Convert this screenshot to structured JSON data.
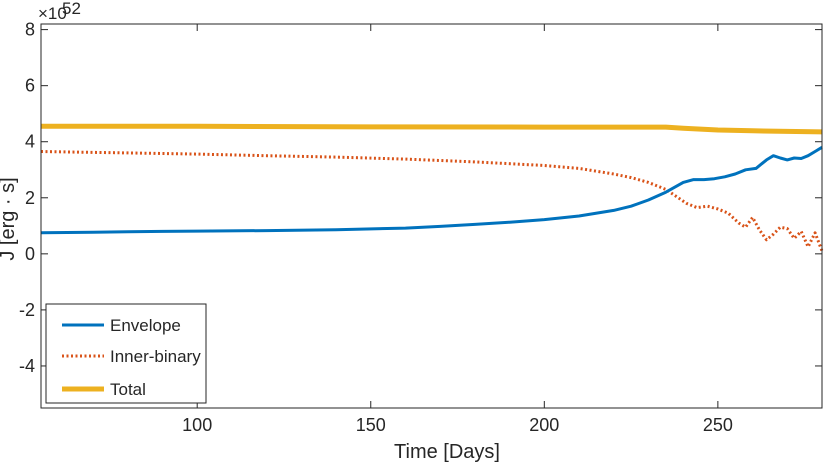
{
  "chart_data": {
    "type": "line",
    "title": "",
    "xlabel": "Time [Days]",
    "ylabel": "J [erg · s]",
    "y_exponent": {
      "base": "×10",
      "power": "52"
    },
    "xlim": [
      55,
      280
    ],
    "ylim": [
      -5.5,
      8.2
    ],
    "xticks": [
      100,
      150,
      200,
      250
    ],
    "yticks": [
      -4,
      -2,
      0,
      2,
      4,
      6,
      8
    ],
    "grid": false,
    "legend_position": "bottom-left",
    "series": [
      {
        "name": "Envelope",
        "color": "#0072BD",
        "style": "solid",
        "x": [
          55,
          70,
          80,
          90,
          100,
          120,
          140,
          160,
          170,
          180,
          190,
          200,
          210,
          220,
          225,
          230,
          235,
          240,
          243,
          246,
          249,
          252,
          255,
          258,
          261,
          264,
          266,
          268,
          270,
          272,
          274,
          276,
          278,
          280
        ],
        "y": [
          0.75,
          0.77,
          0.79,
          0.8,
          0.81,
          0.83,
          0.86,
          0.92,
          0.98,
          1.05,
          1.13,
          1.22,
          1.35,
          1.55,
          1.7,
          1.92,
          2.2,
          2.55,
          2.65,
          2.65,
          2.68,
          2.75,
          2.85,
          3.0,
          3.05,
          3.35,
          3.5,
          3.42,
          3.35,
          3.42,
          3.4,
          3.5,
          3.65,
          3.8
        ]
      },
      {
        "name": "Inner-binary",
        "color": "#D95319",
        "style": "dotted",
        "x": [
          55,
          70,
          80,
          90,
          100,
          120,
          140,
          160,
          180,
          200,
          210,
          220,
          225,
          230,
          235,
          238,
          241,
          244,
          247,
          250,
          253,
          256,
          258,
          260,
          262,
          264,
          266,
          268,
          270,
          272,
          274,
          276,
          278,
          280
        ],
        "y": [
          3.65,
          3.62,
          3.6,
          3.58,
          3.56,
          3.5,
          3.45,
          3.38,
          3.28,
          3.15,
          3.05,
          2.85,
          2.72,
          2.55,
          2.3,
          2.05,
          1.8,
          1.65,
          1.7,
          1.6,
          1.45,
          1.1,
          0.95,
          1.3,
          0.85,
          0.5,
          0.7,
          0.95,
          0.9,
          0.55,
          0.8,
          0.25,
          0.75,
          0.1
        ]
      },
      {
        "name": "Total",
        "color": "#EDB120",
        "style": "solid",
        "x": [
          55,
          100,
          150,
          200,
          230,
          235,
          240,
          250,
          260,
          270,
          280
        ],
        "y": [
          4.55,
          4.55,
          4.53,
          4.52,
          4.52,
          4.52,
          4.48,
          4.42,
          4.39,
          4.37,
          4.35
        ]
      }
    ]
  }
}
